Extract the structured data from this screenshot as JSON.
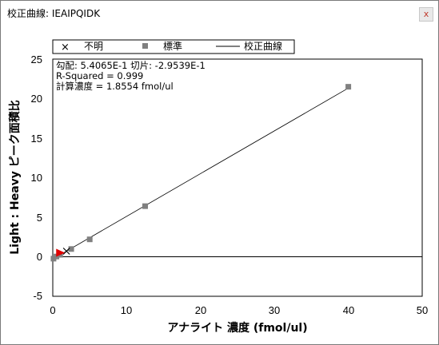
{
  "window": {
    "title": "校正曲線: IEAIPQIDK",
    "close_glyph": "x"
  },
  "chart_data": {
    "type": "scatter",
    "xlabel": "アナライト 濃度 (fmol/ul)",
    "ylabel": "Light : Heavy ピーク面積比",
    "xlim": [
      0,
      50
    ],
    "ylim": [
      -5,
      25
    ],
    "x_ticks": [
      "0",
      "10",
      "20",
      "30",
      "40",
      "50"
    ],
    "y_ticks": [
      "-5",
      "0",
      "5",
      "10",
      "15",
      "20",
      "25"
    ],
    "legend": {
      "placement": "top",
      "entries": [
        {
          "label": "不明",
          "marker": "x"
        },
        {
          "label": "標準",
          "marker": "square"
        },
        {
          "label": "校正曲線",
          "marker": "line"
        }
      ]
    },
    "annotations": [
      "勾配: 5.4065E-1 切片: -2.9539E-1",
      "R-Squared = 0.999",
      "計算濃度 = 1.8554 fmol/ul"
    ],
    "series": [
      {
        "name": "標準",
        "points": [
          {
            "x": 0.1,
            "y": -0.24
          },
          {
            "x": 0.5,
            "y": 0.03
          },
          {
            "x": 1.0,
            "y": 0.25
          },
          {
            "x": 2.5,
            "y": 0.98
          },
          {
            "x": 5.0,
            "y": 2.2
          },
          {
            "x": 12.5,
            "y": 6.4
          },
          {
            "x": 40.0,
            "y": 21.5
          }
        ]
      },
      {
        "name": "不明",
        "points": [
          {
            "x": 1.8554,
            "y": 0.708
          }
        ]
      },
      {
        "name": "校正曲線",
        "slope": 0.54065,
        "intercept": -0.29539,
        "x_range": [
          0,
          40
        ]
      }
    ],
    "marker_arrow": {
      "x": 1.0,
      "y": 0.5,
      "color": "#e00000"
    },
    "colors": {
      "standard": "#808080",
      "unknown": "#000000",
      "curve": "#000000",
      "arrow": "#e00000",
      "zero_line": "#000000"
    }
  }
}
